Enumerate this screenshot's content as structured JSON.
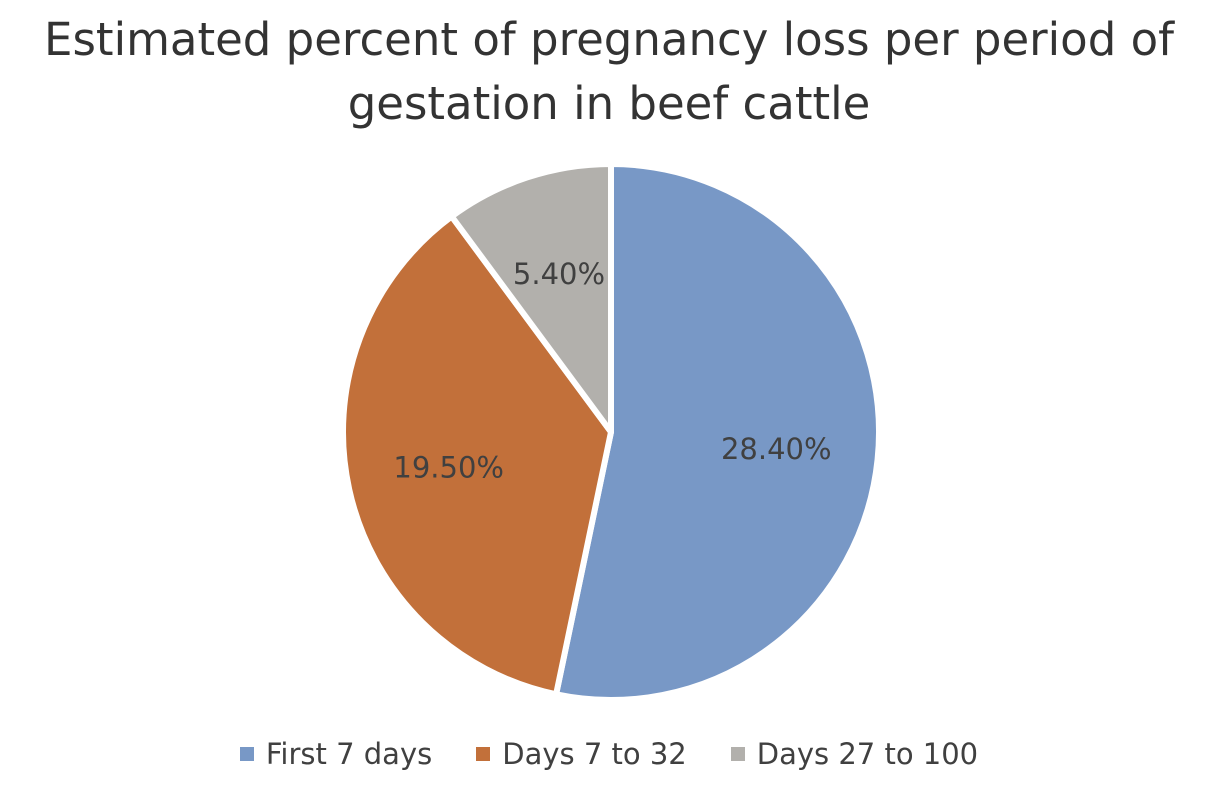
{
  "chart_data": {
    "type": "pie",
    "title": "Estimated percent of pregnancy loss per period of gestation in beef cattle",
    "categories": [
      "First 7 days",
      "Days 7 to 32",
      "Days 27 to 100"
    ],
    "values": [
      28.4,
      19.5,
      5.4
    ],
    "data_labels": [
      "28.40%",
      "19.50%",
      "5.40%"
    ],
    "colors": [
      "#7898c6",
      "#c2703a",
      "#b2b0ac"
    ],
    "legend_position": "bottom",
    "start_angle": "12 o'clock, clockwise"
  }
}
